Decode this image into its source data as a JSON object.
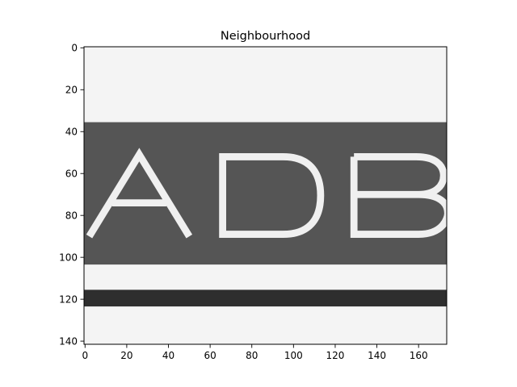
{
  "chart_data": {
    "type": "heatmap",
    "title": "Neighbourhood",
    "xlabel": "",
    "ylabel": "",
    "colormap": "gray",
    "image_width": 174,
    "image_height": 142,
    "xlim": [
      -0.5,
      173.5
    ],
    "ylim": [
      141.5,
      -0.5
    ],
    "x_ticks": [
      0,
      20,
      40,
      60,
      80,
      100,
      120,
      140,
      160
    ],
    "y_ticks": [
      0,
      20,
      40,
      60,
      80,
      100,
      120,
      140
    ],
    "grid": false,
    "rendered_text": "ADB",
    "bands": [
      {
        "name": "light-top",
        "y_start": 0,
        "y_end": 36,
        "intensity": 0.96
      },
      {
        "name": "dark-band",
        "y_start": 36,
        "y_end": 104,
        "intensity": 0.33
      },
      {
        "name": "light-middle",
        "y_start": 104,
        "y_end": 116,
        "intensity": 0.95
      },
      {
        "name": "dark-stripe",
        "y_start": 116,
        "y_end": 124,
        "intensity": 0.18
      },
      {
        "name": "light-bottom",
        "y_start": 124,
        "y_end": 142,
        "intensity": 0.96
      }
    ],
    "letter_intensity": 0.95,
    "colors": {
      "light": "#f4f4f4",
      "dark": "#555555",
      "stripe": "#2e2e2e",
      "letters": "#f0f0f0"
    }
  }
}
